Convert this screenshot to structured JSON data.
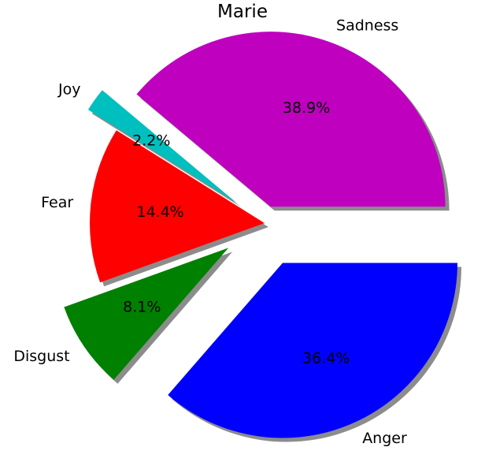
{
  "chart_data": {
    "type": "pie",
    "title": "Marie",
    "slices": [
      {
        "label": "Sadness",
        "value": 38.9,
        "pct_label": "38.9%",
        "color": "#bf00bf",
        "explode": 0.1
      },
      {
        "label": "Joy",
        "value": 2.2,
        "pct_label": "2.2%",
        "color": "#00bfbf",
        "explode": 0.2
      },
      {
        "label": "Fear",
        "value": 14.4,
        "pct_label": "14.4%",
        "color": "#ff0000",
        "explode": 0.0
      },
      {
        "label": "Disgust",
        "value": 8.1,
        "pct_label": "8.1%",
        "color": "#008000",
        "explode": 0.25
      },
      {
        "label": "Anger",
        "value": 36.4,
        "pct_label": "36.4%",
        "color": "#0000ff",
        "explode": 0.25
      }
    ],
    "start_angle_deg": 0,
    "direction": "counterclockwise",
    "shadow": true,
    "legend": "none"
  }
}
